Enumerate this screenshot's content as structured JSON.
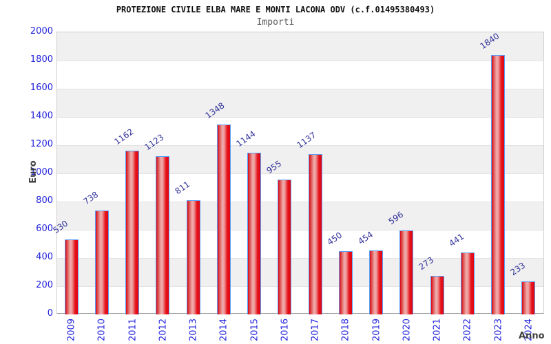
{
  "header": {
    "title": "PROTEZIONE CIVILE ELBA MARE E MONTI LACONA ODV (c.f.01495380493)",
    "subtitle": "Importi"
  },
  "chart_data": {
    "type": "bar",
    "title": "PROTEZIONE CIVILE ELBA MARE E MONTI LACONA ODV (c.f.01495380493)",
    "subtitle": "Importi",
    "categories": [
      "2009",
      "2010",
      "2011",
      "2012",
      "2013",
      "2014",
      "2015",
      "2016",
      "2017",
      "2018",
      "2019",
      "2020",
      "2021",
      "2022",
      "2023",
      "2024"
    ],
    "values": [
      530,
      738,
      1162,
      1123,
      811,
      1348,
      1144,
      955,
      1137,
      450,
      454,
      596,
      273,
      441,
      1840,
      233
    ],
    "xlabel": "Anno",
    "ylabel": "Euro",
    "ylim": [
      0,
      2000
    ],
    "ytick_step": 200,
    "grid": "horizontal-bands",
    "legend": "none",
    "colors": {
      "bar_edge_red": "#df0613",
      "bar_mid_light": "#f0abab",
      "bar_border_blue": "#58a0f8",
      "tick_label_blue": "#2323dd",
      "value_label_navy": "#32329b",
      "band_gray": "#f0f0f0",
      "gridline": "#e2e2e2",
      "axis_title_gray": "#404040",
      "subtitle_gray": "#5a5a5a"
    }
  }
}
